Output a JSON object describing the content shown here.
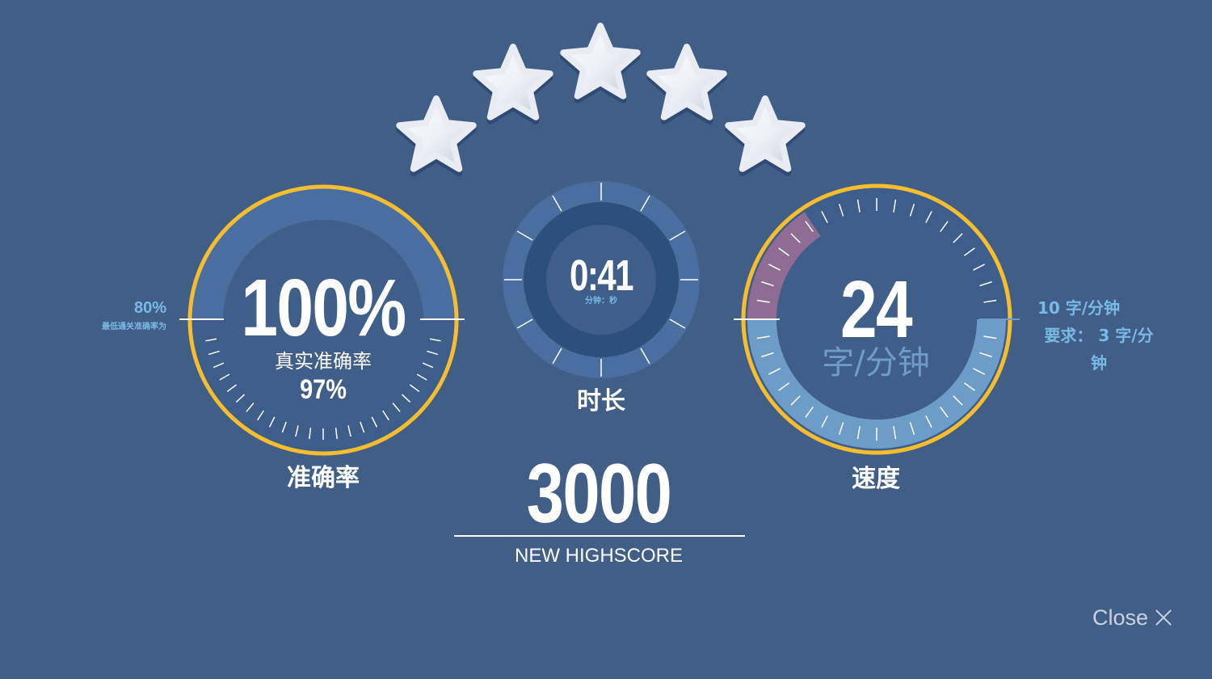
{
  "stars": {
    "earned": 5,
    "total": 5
  },
  "accuracy": {
    "value": "100%",
    "real_label": "真实准确率",
    "real_value": "97%",
    "title": "准确率",
    "pass_value": "80%",
    "pass_label": "最低通关准确率为",
    "accent_color": "#f6be2e"
  },
  "time": {
    "value": "0:41",
    "unit": "分钟：秒",
    "title": "时长"
  },
  "speed": {
    "value": "24",
    "unit": "字/分钟",
    "title": "速度",
    "target": "10 字/分钟",
    "requirement_line1": "要求： 3 字/分",
    "requirement_line2": "钟",
    "accent_color": "#f6be2e",
    "warning_color": "#8f6c93"
  },
  "score": {
    "value": "3000",
    "label": "NEW HIGHSCORE"
  },
  "close": {
    "label": "Close",
    "icon": "close-icon"
  }
}
